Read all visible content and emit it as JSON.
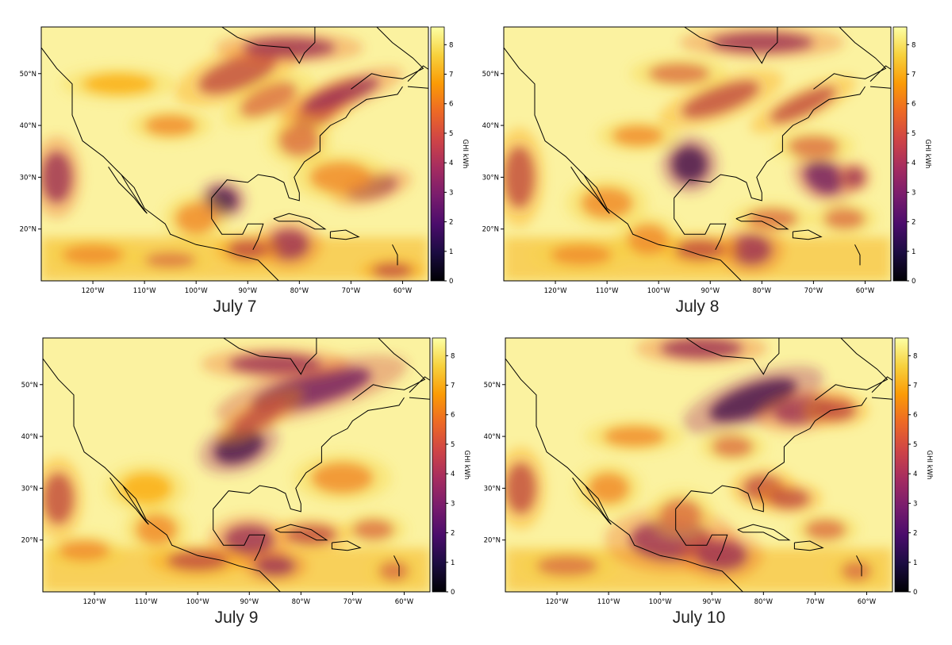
{
  "colors": {
    "scale": [
      "#000004",
      "#1b0c41",
      "#4a0c6b",
      "#781c6d",
      "#a52c60",
      "#cf4446",
      "#ed6925",
      "#fb9b06",
      "#f7d13d",
      "#fcffa4"
    ]
  },
  "colorbar": {
    "label": "GHI kWh",
    "ticks": [
      "0",
      "1",
      "2",
      "3",
      "4",
      "5",
      "6",
      "7",
      "8"
    ],
    "range": [
      0,
      8.6
    ]
  },
  "axes": {
    "lon_ticks": [
      "120°W",
      "110°W",
      "100°W",
      "90°W",
      "80°W",
      "70°W",
      "60°W"
    ],
    "lat_ticks": [
      "20°N",
      "30°N",
      "40°N",
      "50°N"
    ]
  },
  "panels": [
    {
      "title": "July 7"
    },
    {
      "title": "July 8"
    },
    {
      "title": "July 9"
    },
    {
      "title": "July 10"
    }
  ]
}
